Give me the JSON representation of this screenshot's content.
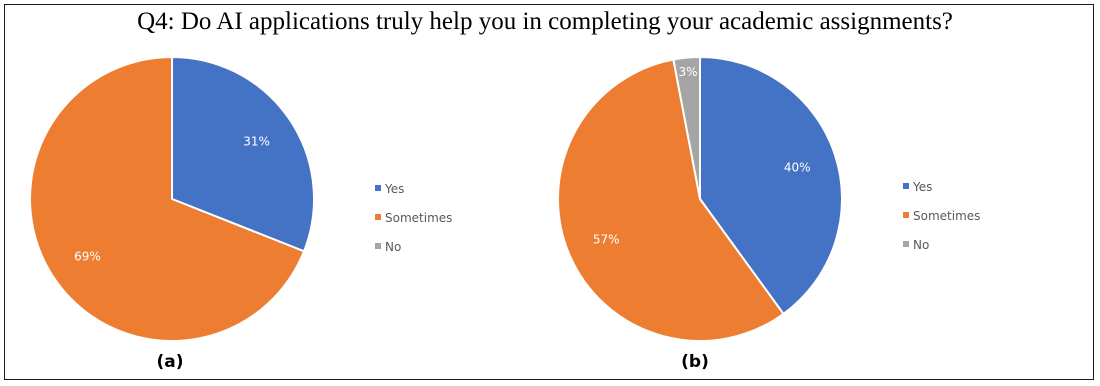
{
  "figure": {
    "title": "Q4: Do AI applications truly help you in completing your academic assignments?"
  },
  "chart_data": [
    {
      "type": "pie",
      "caption": "(a)",
      "legend_placement": "right",
      "slices": [
        {
          "name": "Yes",
          "value": 31,
          "label": "31%",
          "color": "#4472C4"
        },
        {
          "name": "Sometimes",
          "value": 69,
          "label": "69%",
          "color": "#ED7D31"
        },
        {
          "name": "No",
          "value": 0,
          "label": "",
          "color": "#A5A5A5"
        }
      ]
    },
    {
      "type": "pie",
      "caption": "(b)",
      "legend_placement": "right",
      "slices": [
        {
          "name": "Yes",
          "value": 40,
          "label": "40%",
          "color": "#4472C4"
        },
        {
          "name": "Sometimes",
          "value": 57,
          "label": "57%",
          "color": "#ED7D31"
        },
        {
          "name": "No",
          "value": 3,
          "label": "3%",
          "color": "#A5A5A5"
        }
      ]
    }
  ]
}
